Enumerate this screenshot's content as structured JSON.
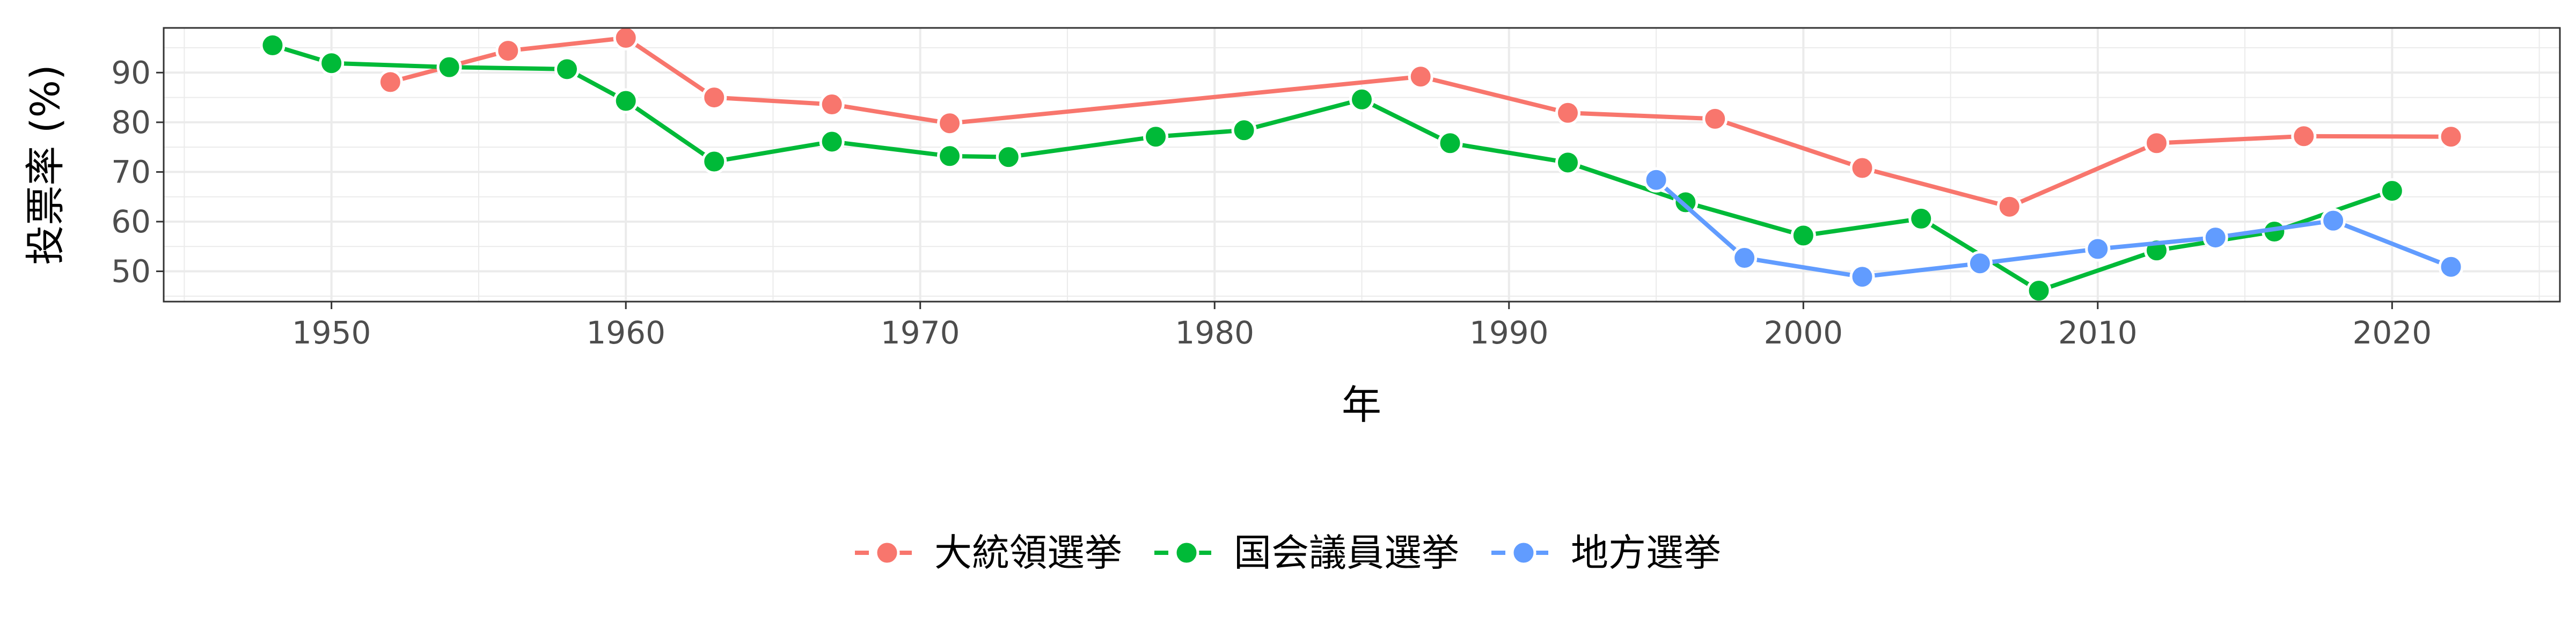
{
  "chart_data": {
    "type": "line",
    "title": "",
    "xlabel": "年",
    "ylabel": "投票率 (%)",
    "xlim": [
      1944.3,
      2025.7
    ],
    "ylim": [
      43.9,
      99.0
    ],
    "x_ticks": [
      1950,
      1960,
      1970,
      1980,
      1990,
      2000,
      2010,
      2020
    ],
    "y_ticks": [
      50,
      60,
      70,
      80,
      90
    ],
    "grid": true,
    "legend_position": "bottom",
    "series": [
      {
        "name": "大統領選挙",
        "color": "#F8766D",
        "points": [
          {
            "x": 1952,
            "y": 88.1
          },
          {
            "x": 1956,
            "y": 94.4
          },
          {
            "x": 1960,
            "y": 97.0
          },
          {
            "x": 1963,
            "y": 85.0
          },
          {
            "x": 1967,
            "y": 83.6
          },
          {
            "x": 1971,
            "y": 79.8
          },
          {
            "x": 1987,
            "y": 89.2
          },
          {
            "x": 1992,
            "y": 81.9
          },
          {
            "x": 1997,
            "y": 80.7
          },
          {
            "x": 2002,
            "y": 70.8
          },
          {
            "x": 2007,
            "y": 63.0
          },
          {
            "x": 2012,
            "y": 75.8
          },
          {
            "x": 2017,
            "y": 77.2
          },
          {
            "x": 2022,
            "y": 77.1
          }
        ]
      },
      {
        "name": "国会議員選挙",
        "color": "#00BA38",
        "points": [
          {
            "x": 1948,
            "y": 95.5
          },
          {
            "x": 1950,
            "y": 91.9
          },
          {
            "x": 1954,
            "y": 91.1
          },
          {
            "x": 1958,
            "y": 90.7
          },
          {
            "x": 1960,
            "y": 84.3
          },
          {
            "x": 1963,
            "y": 72.1
          },
          {
            "x": 1967,
            "y": 76.1
          },
          {
            "x": 1971,
            "y": 73.2
          },
          {
            "x": 1973,
            "y": 73.0
          },
          {
            "x": 1978,
            "y": 77.1
          },
          {
            "x": 1981,
            "y": 78.4
          },
          {
            "x": 1985,
            "y": 84.6
          },
          {
            "x": 1988,
            "y": 75.8
          },
          {
            "x": 1992,
            "y": 71.9
          },
          {
            "x": 1996,
            "y": 63.9
          },
          {
            "x": 2000,
            "y": 57.2
          },
          {
            "x": 2004,
            "y": 60.6
          },
          {
            "x": 2008,
            "y": 46.1
          },
          {
            "x": 2012,
            "y": 54.2
          },
          {
            "x": 2016,
            "y": 58.0
          },
          {
            "x": 2020,
            "y": 66.2
          }
        ]
      },
      {
        "name": "地方選挙",
        "color": "#619CFF",
        "points": [
          {
            "x": 1995,
            "y": 68.4
          },
          {
            "x": 1998,
            "y": 52.7
          },
          {
            "x": 2002,
            "y": 48.9
          },
          {
            "x": 2006,
            "y": 51.6
          },
          {
            "x": 2010,
            "y": 54.5
          },
          {
            "x": 2014,
            "y": 56.8
          },
          {
            "x": 2018,
            "y": 60.2
          },
          {
            "x": 2022,
            "y": 50.9
          }
        ]
      }
    ]
  }
}
